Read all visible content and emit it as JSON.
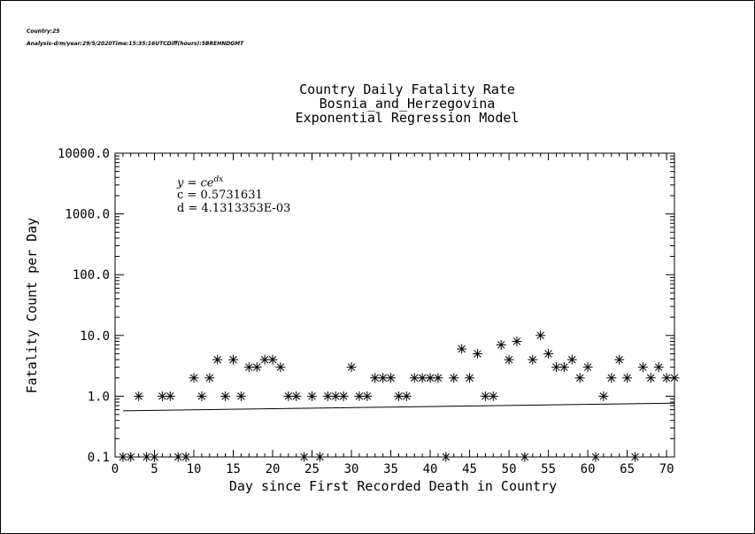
{
  "header": {
    "country_line": "Country:25",
    "analysis_line": "Analysis-d/m/year:29/5/2020Time:15:35:16UTCDiff(hours):5BREHNDGMT"
  },
  "chart_data": {
    "type": "scatter",
    "title_lines": [
      "Country Daily Fatality Rate",
      "Bosnia_and_Herzegovina",
      "Exponential Regression Model"
    ],
    "xlabel": "Day since First Recorded Death in Country",
    "ylabel": "Fatality Count per Day",
    "xlim": [
      0,
      71
    ],
    "ylim": [
      0.1,
      10000
    ],
    "yscale": "log",
    "x_ticks": [
      0,
      5,
      10,
      15,
      20,
      25,
      30,
      35,
      40,
      45,
      50,
      55,
      60,
      65,
      70
    ],
    "y_ticks": [
      0.1,
      1.0,
      10.0,
      100.0,
      1000.0,
      10000.0
    ],
    "y_tick_labels": [
      "0.1",
      "1.0",
      "10.0",
      "100.0",
      "1000.0",
      "10000.0"
    ],
    "marker": "asterisk",
    "points": {
      "x": [
        1,
        2,
        3,
        4,
        5,
        6,
        7,
        8,
        9,
        10,
        11,
        12,
        13,
        14,
        15,
        16,
        17,
        18,
        19,
        20,
        21,
        22,
        23,
        24,
        25,
        26,
        27,
        28,
        29,
        30,
        31,
        32,
        33,
        34,
        35,
        36,
        37,
        38,
        39,
        40,
        41,
        42,
        43,
        44,
        45,
        46,
        47,
        48,
        49,
        50,
        51,
        52,
        53,
        54,
        55,
        56,
        57,
        58,
        59,
        60,
        61,
        62,
        63,
        64,
        65,
        66,
        67,
        68,
        69,
        70,
        71
      ],
      "y": [
        0.1,
        0.1,
        1,
        0.1,
        0.1,
        1,
        1,
        0.1,
        0.1,
        2,
        1,
        2,
        4,
        1,
        4,
        1,
        3,
        3,
        4,
        4,
        3,
        1,
        1,
        0.1,
        1,
        0.1,
        1,
        1,
        1,
        3,
        1,
        1,
        2,
        2,
        2,
        1,
        1,
        2,
        2,
        2,
        2,
        0.1,
        2,
        6,
        2,
        5,
        1,
        1,
        7,
        4,
        8,
        0.1,
        4,
        10,
        5,
        3,
        3,
        4,
        2,
        3,
        0.1,
        1,
        2,
        4,
        2,
        0.1,
        3,
        2,
        3,
        2,
        2
      ]
    },
    "regression": {
      "equation": "y = ce^{dx}",
      "c_label": "c = 0.5731631",
      "d_label": "d = 4.1313353E-03",
      "c": 0.5731631,
      "d": 0.0041313353
    },
    "grid": false,
    "legend": "none"
  }
}
